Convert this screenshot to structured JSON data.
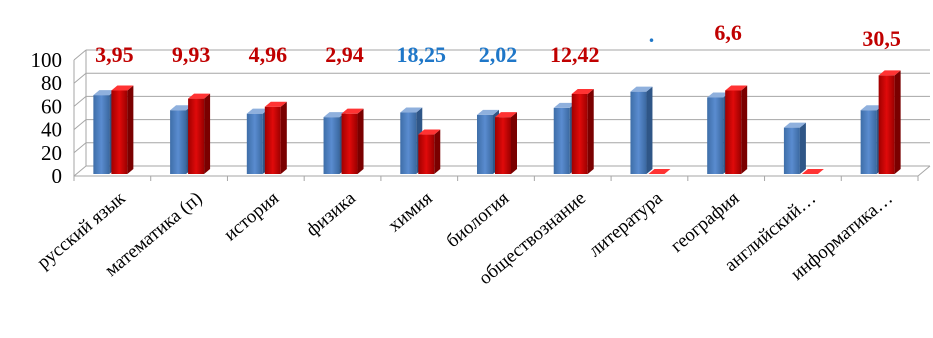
{
  "chart_data": {
    "type": "bar",
    "categories": [
      "русский язык",
      "математика (п)",
      "история",
      "физика",
      "химия",
      "биология",
      "обществознание",
      "литература",
      "география",
      "английский…",
      "информатика…"
    ],
    "series": [
      {
        "values": [
          68,
          55,
          52,
          49,
          53,
          51,
          57,
          71,
          66,
          40,
          55
        ]
      },
      {
        "values": [
          72,
          65,
          58,
          52,
          34,
          49,
          69,
          0,
          72,
          0,
          85
        ]
      }
    ],
    "data_labels": [
      "3,95",
      "9,93",
      "4,96",
      "2,94",
      "18,25",
      "2,02",
      "12,42",
      ".",
      "6,6",
      "",
      "30,5"
    ],
    "data_label_colors": [
      "#c00000",
      "#c00000",
      "#c00000",
      "#c00000",
      "#1f77c8",
      "#1f77c8",
      "#c00000",
      "#1f77c8",
      "#c00000",
      "#c00000",
      "#c00000"
    ],
    "yticks": [
      0,
      20,
      40,
      60,
      80,
      100
    ],
    "ylim": [
      0,
      100
    ],
    "colors": {
      "series1": "#4f81bd",
      "series2": "#c00000",
      "grid": "#a6a6a6"
    },
    "grid": true,
    "legend": "none"
  }
}
